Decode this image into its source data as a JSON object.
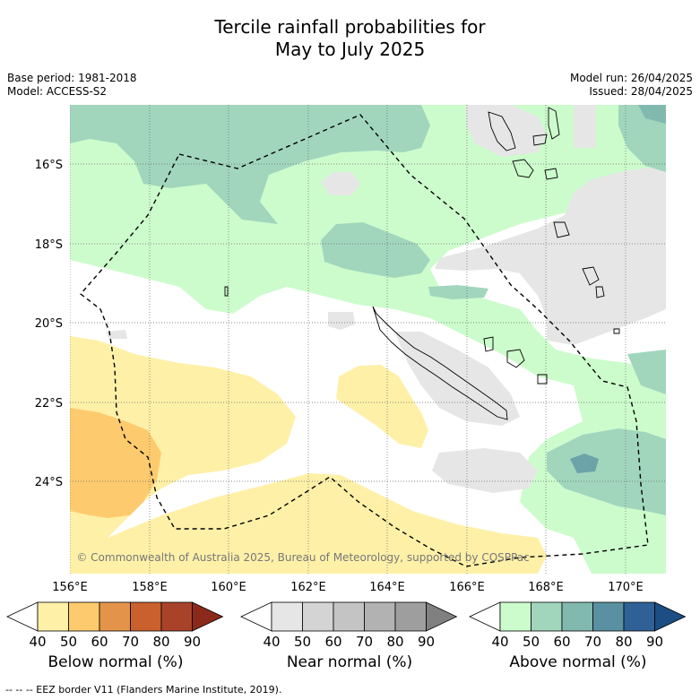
{
  "title_line1": "Tercile rainfall probabilities for",
  "title_line2": "May to July 2025",
  "base_period": "Base period: 1981-2018",
  "model": "Model: ACCESS-S2",
  "model_run": "Model run: 26/04/2025",
  "issued": "Issued: 28/04/2025",
  "copyright": "© Commonwealth of Australia 2025, Bureau of Meteorology, supported by COSPPac",
  "lon_labels": [
    "156°E",
    "158°E",
    "160°E",
    "162°E",
    "164°E",
    "166°E",
    "168°E",
    "170°E"
  ],
  "lat_labels": [
    "16°S",
    "18°S",
    "20°S",
    "22°S",
    "24°S"
  ],
  "colorbars": [
    {
      "label": "Below normal (%)",
      "ticks": [
        "40",
        "50",
        "60",
        "70",
        "80",
        "90"
      ],
      "colors": [
        "#ffffff",
        "#fff0a8",
        "#fdcb6e",
        "#e4944a",
        "#c9602d",
        "#a8432a",
        "#8b2a1a"
      ]
    },
    {
      "label": "Near normal (%)",
      "ticks": [
        "40",
        "50",
        "60",
        "70",
        "80",
        "90"
      ],
      "colors": [
        "#ffffff",
        "#e6e6e6",
        "#d4d4d4",
        "#c4c4c4",
        "#b2b2b2",
        "#9e9e9e",
        "#808080"
      ]
    },
    {
      "label": "Above normal (%)",
      "ticks": [
        "40",
        "50",
        "60",
        "70",
        "80",
        "90"
      ],
      "colors": [
        "#ffffff",
        "#ccfccc",
        "#a1d6bd",
        "#82b9ae",
        "#5a91a2",
        "#2f6196",
        "#1c4e85"
      ]
    }
  ],
  "footer": "--  --  -- EEZ border V11 (Flanders Marine Institute, 2019)."
}
